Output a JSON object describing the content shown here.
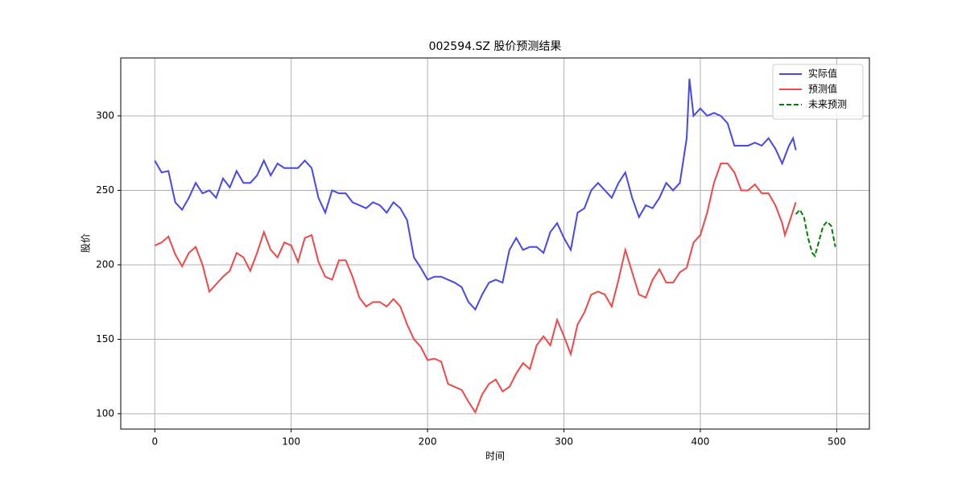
{
  "chart_data": {
    "type": "line",
    "title": "002594.SZ 股价预测结果",
    "xlabel": "时间",
    "ylabel": "股价",
    "xlim": [
      -24.95,
      523.95
    ],
    "ylim": [
      89.7,
      338.9
    ],
    "xticks": [
      0,
      100,
      200,
      300,
      400,
      500
    ],
    "yticks": [
      100,
      150,
      200,
      250,
      300
    ],
    "grid": true,
    "legend": "upper right",
    "series": [
      {
        "name": "实际值",
        "color": "#4747ee",
        "linestyle": "solid",
        "x": [
          0,
          5,
          10,
          15,
          20,
          25,
          30,
          35,
          40,
          45,
          50,
          55,
          60,
          65,
          70,
          75,
          80,
          85,
          90,
          95,
          100,
          105,
          110,
          115,
          120,
          125,
          130,
          135,
          140,
          145,
          150,
          155,
          160,
          165,
          170,
          175,
          180,
          185,
          190,
          195,
          200,
          205,
          210,
          215,
          220,
          225,
          230,
          235,
          240,
          245,
          250,
          255,
          260,
          265,
          270,
          275,
          280,
          285,
          290,
          295,
          300,
          305,
          310,
          315,
          320,
          325,
          330,
          335,
          340,
          345,
          350,
          355,
          360,
          365,
          370,
          375,
          380,
          385,
          390,
          392,
          395,
          400,
          405,
          410,
          415,
          420,
          425,
          430,
          435,
          440,
          445,
          450,
          455,
          460,
          465,
          468,
          470
        ],
        "values": [
          270,
          262,
          263,
          242,
          237,
          245,
          255,
          248,
          250,
          245,
          258,
          252,
          263,
          255,
          255,
          260,
          270,
          260,
          268,
          265,
          265,
          265,
          270,
          265,
          245,
          235,
          250,
          248,
          248,
          242,
          240,
          238,
          242,
          240,
          235,
          242,
          238,
          230,
          205,
          198,
          190,
          192,
          192,
          190,
          188,
          185,
          175,
          170,
          180,
          188,
          190,
          188,
          210,
          218,
          210,
          212,
          212,
          208,
          222,
          228,
          218,
          210,
          235,
          238,
          250,
          255,
          250,
          245,
          255,
          262,
          245,
          232,
          240,
          238,
          245,
          255,
          250,
          255,
          285,
          325,
          300,
          305,
          300,
          302,
          300,
          295,
          280,
          280,
          280,
          282,
          280,
          285,
          278,
          268,
          280,
          285,
          277
        ]
      },
      {
        "name": "预测值",
        "color": "#f04848",
        "linestyle": "solid",
        "x": [
          0,
          5,
          10,
          15,
          20,
          25,
          30,
          35,
          40,
          45,
          50,
          55,
          60,
          65,
          70,
          75,
          80,
          85,
          90,
          95,
          100,
          105,
          110,
          115,
          120,
          125,
          130,
          135,
          140,
          145,
          150,
          155,
          160,
          165,
          170,
          175,
          180,
          185,
          190,
          195,
          200,
          205,
          210,
          215,
          220,
          225,
          230,
          235,
          240,
          245,
          250,
          255,
          260,
          265,
          270,
          275,
          280,
          285,
          290,
          295,
          300,
          305,
          310,
          315,
          320,
          325,
          330,
          335,
          340,
          345,
          350,
          355,
          360,
          365,
          370,
          375,
          380,
          385,
          390,
          395,
          400,
          405,
          410,
          415,
          420,
          425,
          430,
          435,
          440,
          445,
          450,
          455,
          460,
          462,
          465,
          470
        ],
        "values": [
          213,
          215,
          219,
          207,
          199,
          208,
          212,
          200,
          182,
          187,
          192,
          196,
          208,
          205,
          196,
          208,
          222,
          210,
          205,
          215,
          213,
          202,
          218,
          220,
          202,
          192,
          190,
          203,
          203,
          192,
          178,
          172,
          175,
          175,
          172,
          177,
          172,
          160,
          150,
          145,
          136,
          137,
          135,
          120,
          118,
          116,
          108,
          101,
          113,
          120,
          123,
          115,
          118,
          127,
          134,
          130,
          146,
          152,
          146,
          163,
          152,
          140,
          160,
          168,
          180,
          182,
          180,
          172,
          190,
          210,
          195,
          180,
          178,
          190,
          197,
          188,
          188,
          195,
          198,
          215,
          220,
          235,
          255,
          268,
          268,
          262,
          250,
          250,
          254,
          248,
          248,
          240,
          228,
          220,
          228,
          242
        ]
      },
      {
        "name": "未来预测",
        "color": "#008000",
        "linestyle": "dashed",
        "x": [
          470,
          473,
          476,
          479,
          482,
          484,
          487,
          490,
          493,
          496,
          499
        ],
        "values": [
          234,
          237,
          232,
          218,
          208,
          206,
          216,
          226,
          229,
          226,
          212
        ]
      }
    ]
  }
}
